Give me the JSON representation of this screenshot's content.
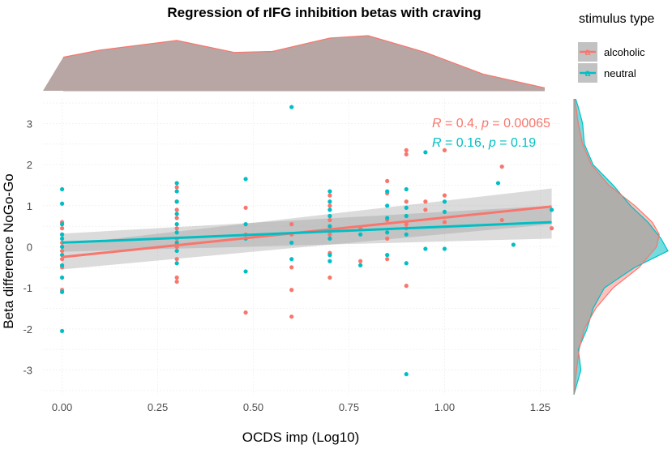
{
  "chart_data": {
    "type": "scatter",
    "title": "Regression of rIFG inhibition betas with craving",
    "xlabel": "OCDS imp (Log10)",
    "ylabel": "Beta difference NoGo-Go",
    "xlim": [
      -0.05,
      1.3
    ],
    "ylim": [
      -3.6,
      3.6
    ],
    "x_ticks": [
      "0.00",
      "0.25",
      "0.50",
      "0.75",
      "1.00",
      "1.25"
    ],
    "x_tick_values": [
      0,
      0.25,
      0.5,
      0.75,
      1.0,
      1.25
    ],
    "y_ticks": [
      "-3",
      "-2",
      "-1",
      "0",
      "1",
      "2",
      "3"
    ],
    "y_tick_values": [
      -3,
      -2,
      -1,
      0,
      1,
      2,
      3
    ],
    "legend": {
      "title": "stimulus type",
      "entries": [
        {
          "name": "alcoholic",
          "color": "#f8766d",
          "glyph": "a"
        },
        {
          "name": "neutral",
          "color": "#00bfc4",
          "glyph": "a"
        }
      ]
    },
    "annotations": [
      {
        "series": "alcoholic",
        "r_label": "R",
        "r_value": " = 0.4, ",
        "p_label": "p",
        "p_value": " = 0.00065",
        "color": "#f8766d"
      },
      {
        "series": "neutral",
        "r_label": "R",
        "r_value": " = 0.16, ",
        "p_label": "p",
        "p_value": " = 0.19",
        "color": "#00bfc4"
      }
    ],
    "series": [
      {
        "name": "alcoholic",
        "color": "#f8766d",
        "regression": {
          "x0": 0,
          "y0": -0.25,
          "x1": 1.28,
          "y1": 0.98,
          "ci_lo0": -0.55,
          "ci_hi0": 0.05,
          "ci_lo1": 0.55,
          "ci_hi1": 1.42
        },
        "points": [
          [
            0,
            0.6
          ],
          [
            0,
            0.45
          ],
          [
            0,
            0.3
          ],
          [
            0,
            0.1
          ],
          [
            0,
            -0.1
          ],
          [
            0,
            -0.3
          ],
          [
            0,
            -0.5
          ],
          [
            0,
            -1.05
          ],
          [
            0.3,
            1.45
          ],
          [
            0.3,
            1.1
          ],
          [
            0.3,
            0.9
          ],
          [
            0.3,
            0.7
          ],
          [
            0.3,
            0.45
          ],
          [
            0.3,
            0.2
          ],
          [
            0.3,
            0.0
          ],
          [
            0.3,
            -0.3
          ],
          [
            0.3,
            -0.75
          ],
          [
            0.3,
            -0.85
          ],
          [
            0.48,
            0.95
          ],
          [
            0.48,
            0.3
          ],
          [
            0.48,
            -1.6
          ],
          [
            0.6,
            0.55
          ],
          [
            0.6,
            0.3
          ],
          [
            0.6,
            -0.5
          ],
          [
            0.6,
            -1.05
          ],
          [
            0.6,
            -1.7
          ],
          [
            0.7,
            1.25
          ],
          [
            0.7,
            1.0
          ],
          [
            0.7,
            0.65
          ],
          [
            0.7,
            0.3
          ],
          [
            0.7,
            -0.15
          ],
          [
            0.7,
            -0.75
          ],
          [
            0.78,
            0.45
          ],
          [
            0.78,
            -0.35
          ],
          [
            0.85,
            1.6
          ],
          [
            0.85,
            1.3
          ],
          [
            0.85,
            0.65
          ],
          [
            0.85,
            0.2
          ],
          [
            0.85,
            -0.3
          ],
          [
            0.9,
            2.35
          ],
          [
            0.9,
            2.25
          ],
          [
            0.9,
            1.1
          ],
          [
            0.9,
            0.55
          ],
          [
            0.9,
            0.45
          ],
          [
            0.9,
            -0.95
          ],
          [
            0.95,
            1.1
          ],
          [
            0.95,
            0.9
          ],
          [
            1.0,
            2.35
          ],
          [
            1.0,
            1.25
          ],
          [
            1.0,
            0.6
          ],
          [
            1.15,
            1.95
          ],
          [
            1.15,
            0.65
          ],
          [
            1.28,
            0.45
          ]
        ]
      },
      {
        "name": "neutral",
        "color": "#00bfc4",
        "regression": {
          "x0": 0,
          "y0": 0.1,
          "x1": 1.28,
          "y1": 0.6,
          "ci_lo0": -0.12,
          "ci_hi0": 0.32,
          "ci_lo1": 0.2,
          "ci_hi1": 1.0
        },
        "points": [
          [
            0,
            1.4
          ],
          [
            0,
            1.05
          ],
          [
            0,
            0.55
          ],
          [
            0,
            0.3
          ],
          [
            0,
            0.2
          ],
          [
            0,
            0.0
          ],
          [
            0,
            -0.2
          ],
          [
            0,
            -0.45
          ],
          [
            0,
            -0.75
          ],
          [
            0,
            -1.1
          ],
          [
            0,
            -2.05
          ],
          [
            0.3,
            1.55
          ],
          [
            0.3,
            1.35
          ],
          [
            0.3,
            1.1
          ],
          [
            0.3,
            0.8
          ],
          [
            0.3,
            0.55
          ],
          [
            0.3,
            0.35
          ],
          [
            0.3,
            0.1
          ],
          [
            0.3,
            -0.1
          ],
          [
            0.3,
            -0.4
          ],
          [
            0.48,
            1.65
          ],
          [
            0.48,
            0.55
          ],
          [
            0.48,
            0.2
          ],
          [
            0.48,
            -0.6
          ],
          [
            0.6,
            3.4
          ],
          [
            0.6,
            0.1
          ],
          [
            0.6,
            -0.3
          ],
          [
            0.7,
            1.35
          ],
          [
            0.7,
            1.1
          ],
          [
            0.7,
            0.9
          ],
          [
            0.7,
            0.75
          ],
          [
            0.7,
            0.5
          ],
          [
            0.7,
            0.2
          ],
          [
            0.7,
            -0.2
          ],
          [
            0.7,
            -0.35
          ],
          [
            0.78,
            0.3
          ],
          [
            0.78,
            -0.45
          ],
          [
            0.85,
            1.35
          ],
          [
            0.85,
            1.0
          ],
          [
            0.85,
            0.7
          ],
          [
            0.85,
            0.35
          ],
          [
            0.85,
            -0.2
          ],
          [
            0.9,
            1.4
          ],
          [
            0.9,
            0.95
          ],
          [
            0.9,
            0.75
          ],
          [
            0.9,
            0.3
          ],
          [
            0.9,
            -0.4
          ],
          [
            0.9,
            -3.1
          ],
          [
            0.95,
            2.3
          ],
          [
            0.95,
            -0.05
          ],
          [
            1.0,
            1.1
          ],
          [
            1.0,
            0.85
          ],
          [
            1.0,
            -0.05
          ],
          [
            1.14,
            1.55
          ],
          [
            1.18,
            0.05
          ],
          [
            1.28,
            0.9
          ]
        ]
      }
    ],
    "marginal_x": {
      "curve": [
        [
          -0.05,
          0.7
        ],
        [
          0.1,
          0.85
        ],
        [
          0.3,
          1.05
        ],
        [
          0.45,
          0.8
        ],
        [
          0.55,
          0.82
        ],
        [
          0.7,
          1.1
        ],
        [
          0.8,
          1.15
        ],
        [
          0.95,
          0.8
        ],
        [
          1.1,
          0.35
        ],
        [
          1.3,
          0.06
        ]
      ]
    },
    "marginal_y": {
      "alcoholic": [
        [
          -3.6,
          0.0
        ],
        [
          -3.0,
          0.03
        ],
        [
          -2.5,
          0.06
        ],
        [
          -2.0,
          0.12
        ],
        [
          -1.5,
          0.25
        ],
        [
          -1.0,
          0.45
        ],
        [
          -0.5,
          0.75
        ],
        [
          0.0,
          0.95
        ],
        [
          0.3,
          0.98
        ],
        [
          0.6,
          0.9
        ],
        [
          1.0,
          0.7
        ],
        [
          1.5,
          0.4
        ],
        [
          2.0,
          0.2
        ],
        [
          2.5,
          0.1
        ],
        [
          3.0,
          0.05
        ],
        [
          3.6,
          0.01
        ]
      ],
      "neutral": [
        [
          -3.6,
          0.0
        ],
        [
          -3.0,
          0.08
        ],
        [
          -2.5,
          0.05
        ],
        [
          -2.0,
          0.15
        ],
        [
          -1.5,
          0.22
        ],
        [
          -1.0,
          0.35
        ],
        [
          -0.5,
          0.7
        ],
        [
          -0.1,
          1.08
        ],
        [
          0.2,
          1.0
        ],
        [
          0.6,
          0.85
        ],
        [
          1.0,
          0.65
        ],
        [
          1.5,
          0.45
        ],
        [
          2.0,
          0.22
        ],
        [
          2.5,
          0.12
        ],
        [
          3.0,
          0.1
        ],
        [
          3.4,
          0.05
        ],
        [
          3.6,
          0.02
        ]
      ]
    }
  }
}
